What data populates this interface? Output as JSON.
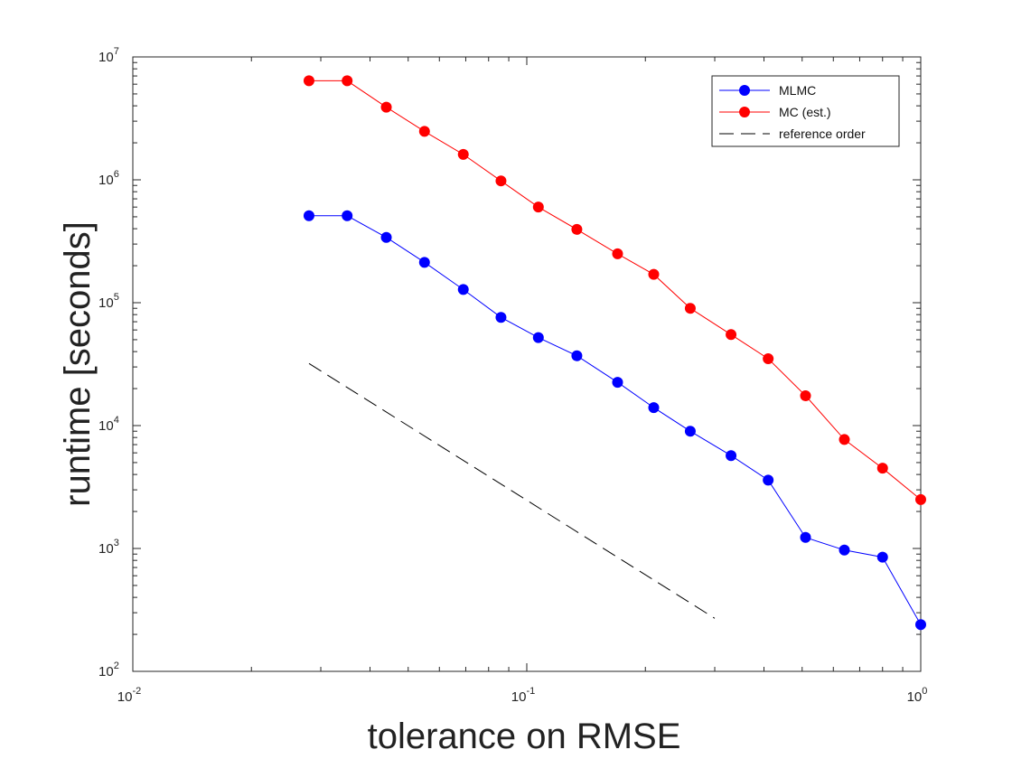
{
  "chart_data": {
    "type": "line",
    "xlabel": "tolerance on RMSE",
    "ylabel": "runtime [seconds]",
    "xscale": "log",
    "yscale": "log",
    "xlim": [
      0.01,
      1
    ],
    "ylim": [
      100,
      10000000
    ],
    "x_ticks": [
      {
        "value": 0.01,
        "base": "10",
        "exp": "-2"
      },
      {
        "value": 0.1,
        "base": "10",
        "exp": "-1"
      },
      {
        "value": 1,
        "base": "10",
        "exp": "0"
      }
    ],
    "y_ticks": [
      {
        "value": 100,
        "base": "10",
        "exp": "2"
      },
      {
        "value": 1000,
        "base": "10",
        "exp": "3"
      },
      {
        "value": 10000,
        "base": "10",
        "exp": "4"
      },
      {
        "value": 100000,
        "base": "10",
        "exp": "5"
      },
      {
        "value": 1000000,
        "base": "10",
        "exp": "6"
      },
      {
        "value": 10000000,
        "base": "10",
        "exp": "7"
      }
    ],
    "grid": false,
    "legend_position": "top-right",
    "series": [
      {
        "name": "MLMC",
        "color": "#0000ff",
        "marker": "circle",
        "line_style": "solid",
        "x": [
          1.0,
          0.8,
          0.64,
          0.51,
          0.41,
          0.33,
          0.26,
          0.21,
          0.17,
          0.134,
          0.107,
          0.086,
          0.069,
          0.055,
          0.044,
          0.035,
          0.028
        ],
        "y": [
          240,
          850,
          970,
          1230,
          3600,
          5700,
          9000,
          14000,
          22500,
          37000,
          52000,
          76000,
          128000,
          213000,
          340000,
          510000,
          510000
        ]
      },
      {
        "name": "MC (est.)",
        "color": "#ff0000",
        "marker": "circle",
        "line_style": "solid",
        "x": [
          1.0,
          0.8,
          0.64,
          0.51,
          0.41,
          0.33,
          0.26,
          0.21,
          0.17,
          0.134,
          0.107,
          0.086,
          0.069,
          0.055,
          0.044,
          0.035,
          0.028
        ],
        "y": [
          2500,
          4500,
          7700,
          17500,
          35000,
          55000,
          90000,
          170000,
          250000,
          395000,
          600000,
          980000,
          1610000,
          2480000,
          3900000,
          6400000,
          6400000
        ]
      },
      {
        "name": "reference order",
        "color": "#000000",
        "marker": "none",
        "line_style": "dashed",
        "x": [
          0.028,
          0.3
        ],
        "y": [
          32000,
          270
        ]
      }
    ]
  }
}
